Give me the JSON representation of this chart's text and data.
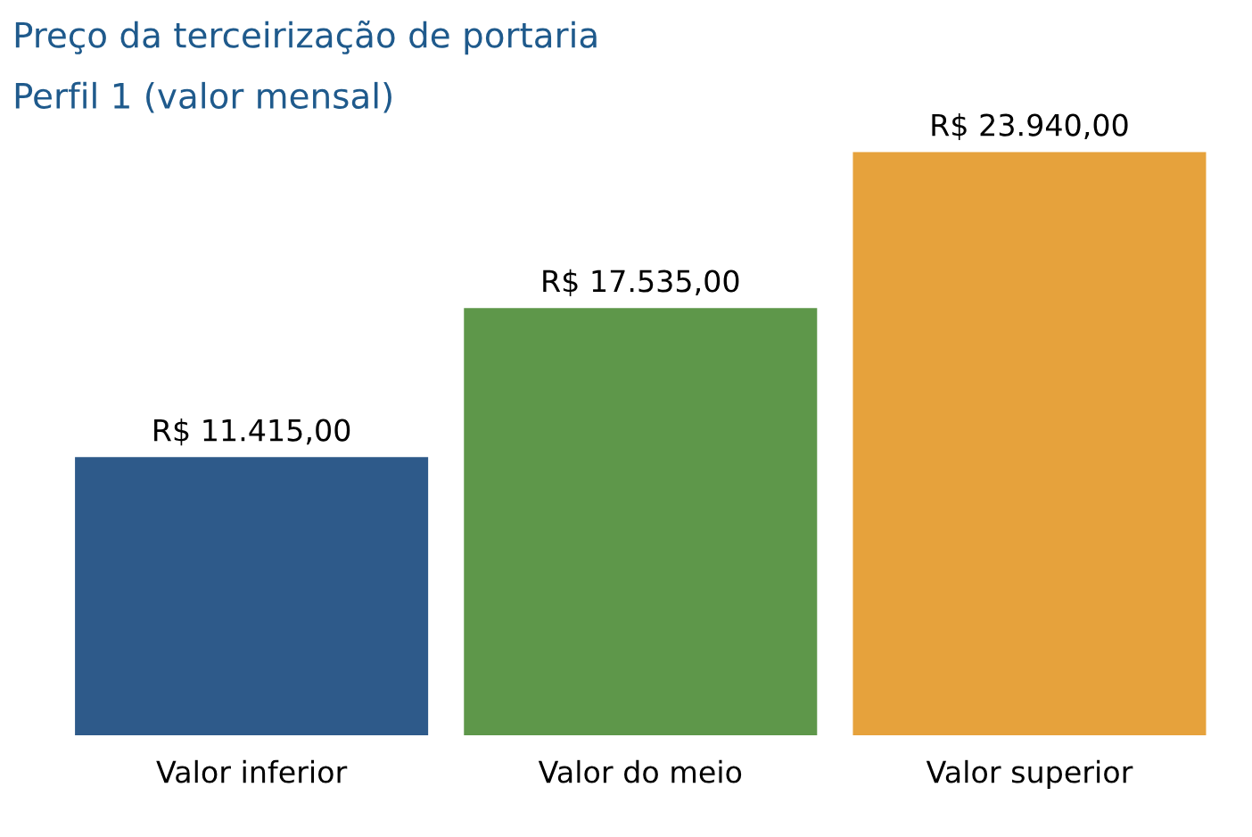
{
  "chart_data": {
    "type": "bar",
    "title": "Preço da terceirização de portaria",
    "subtitle": "Perfil 1 (valor mensal)",
    "categories": [
      "Valor inferior",
      "Valor do meio",
      "Valor superior"
    ],
    "values": [
      11415,
      17535,
      23940
    ],
    "colors": [
      "#2e5a8a",
      "#5e974a",
      "#e6a23c"
    ],
    "value_labels": [
      "R$ 11.415,00",
      "R$ 17.535,00",
      "R$ 23.940,00"
    ],
    "grid": false,
    "legend": false
  }
}
